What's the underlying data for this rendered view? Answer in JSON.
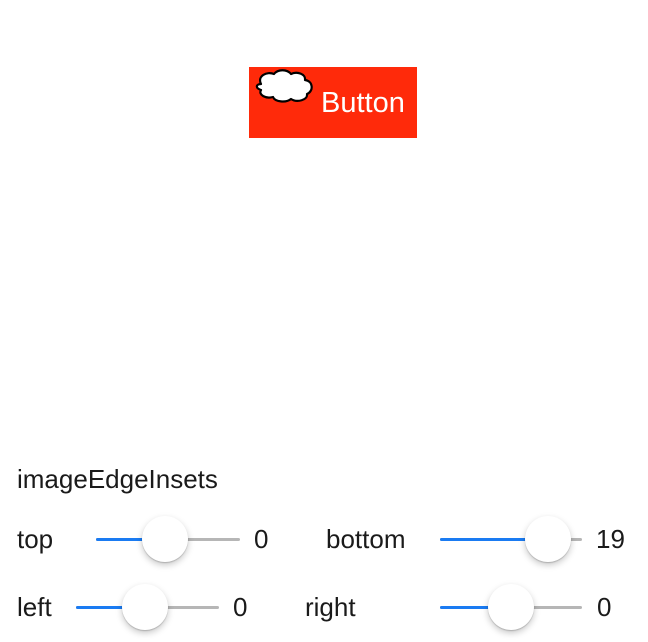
{
  "demo_button": {
    "title": "Button",
    "icon": "cloud-icon",
    "background_color": "#ff2a0a",
    "title_color": "#ffffff"
  },
  "section_title": "imageEdgeInsets",
  "accent_color": "#1a7bf2",
  "sliders": {
    "top": {
      "label": "top",
      "value_text": "0",
      "fraction": 0.48
    },
    "bottom": {
      "label": "bottom",
      "value_text": "19",
      "fraction": 0.76
    },
    "left": {
      "label": "left",
      "value_text": "0",
      "fraction": 0.48
    },
    "right": {
      "label": "right",
      "value_text": "0",
      "fraction": 0.5
    }
  }
}
